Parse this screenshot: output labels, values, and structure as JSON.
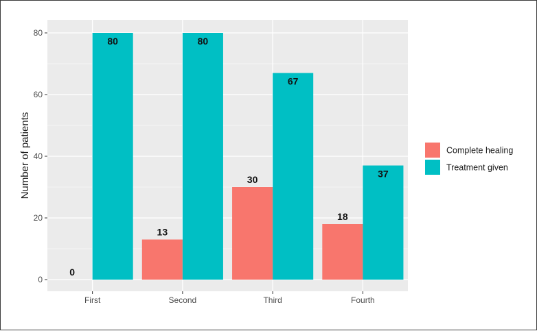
{
  "chart_data": {
    "type": "bar",
    "categories": [
      "First",
      "Second",
      "Third",
      "Fourth"
    ],
    "series": [
      {
        "name": "Complete healing",
        "values": [
          0,
          13,
          30,
          18
        ],
        "color": "#F8766D"
      },
      {
        "name": "Treatment given",
        "values": [
          80,
          80,
          67,
          37
        ],
        "color": "#00BFC4"
      }
    ],
    "title": "",
    "xlabel": "",
    "ylabel": "Number of patients",
    "ylim": [
      0,
      82
    ],
    "yticks": [
      0,
      20,
      40,
      60,
      80
    ],
    "grid": true,
    "legend_position": "right",
    "panel_background": "#EBEBEB",
    "grid_color": "#FFFFFF"
  }
}
